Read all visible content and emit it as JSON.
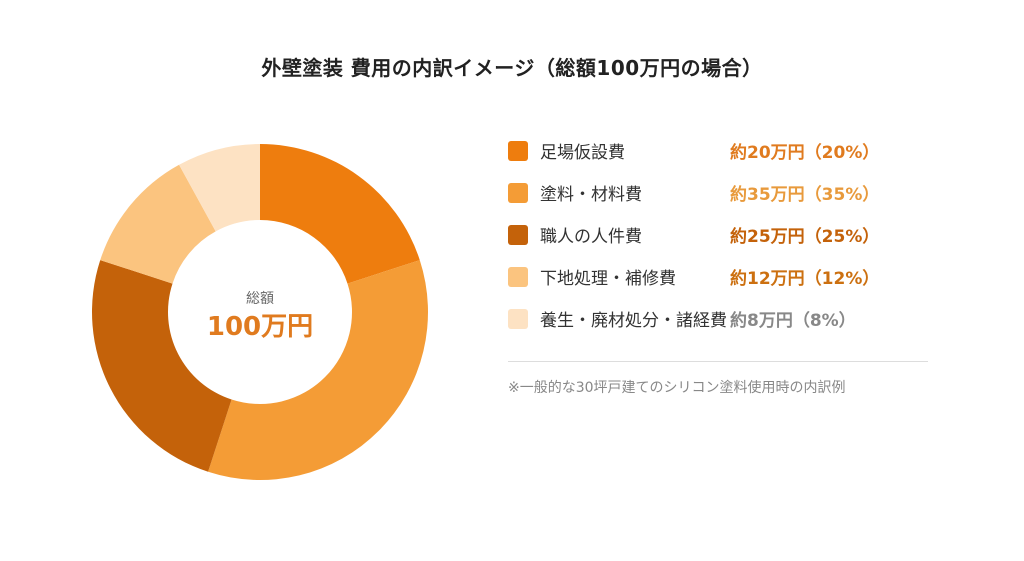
{
  "chart_data": {
    "type": "pie",
    "title": "外壁塗装 費用の内訳イメージ（総額100万円の場合）",
    "center": {
      "label": "総額",
      "value": "100万円"
    },
    "categories": [
      "足場仮設費",
      "塗料・材料費",
      "職人の人件費",
      "下地処理・補修費",
      "養生・廃材処分・諸経費"
    ],
    "values": [
      20,
      35,
      25,
      12,
      8
    ],
    "value_labels": [
      "約20万円（20%）",
      "約35万円（35%）",
      "約25万円（25%）",
      "約12万円（12%）",
      "約8万円（8%）"
    ],
    "colors": [
      "#ee7d0e",
      "#f49c36",
      "#c4620a",
      "#fbc47f",
      "#fde2c3"
    ],
    "label_colors": [
      "#e07b1f",
      "#e89a3c",
      "#c4620a",
      "#cc7010",
      "#888888"
    ],
    "note": "※一般的な30坪戸建てのシリコン塗料使用時の内訳例"
  }
}
